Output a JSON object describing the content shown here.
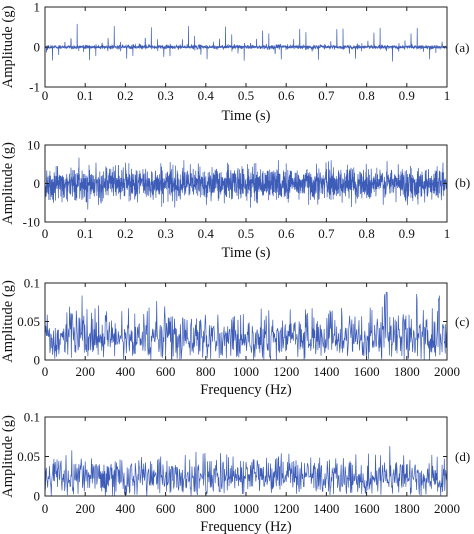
{
  "colors": {
    "signal": "#3d5cb8",
    "axis": "#222222"
  },
  "chart_data": [
    {
      "type": "line",
      "panel_label": "(a)",
      "xlabel": "Time (s)",
      "ylabel": "Amplitude (g)",
      "xlim": [
        0,
        1
      ],
      "ylim": [
        -1,
        1
      ],
      "xticks": [
        "0",
        "0.1",
        "0.2",
        "0.3",
        "0.4",
        "0.5",
        "0.6",
        "0.7",
        "0.8",
        "0.9",
        "1"
      ],
      "yticks": [
        "-1",
        "0",
        "1"
      ],
      "grid": false,
      "signal": {
        "kind": "periodic-impulses",
        "impulse_period_s": 0.01538,
        "impulse_count": 65,
        "peak_amplitude_g": 0.68,
        "baseline_noise_g": 0.05
      }
    },
    {
      "type": "line",
      "panel_label": "(b)",
      "xlabel": "Time (s)",
      "ylabel": "Amplitude (g)",
      "xlim": [
        0,
        1
      ],
      "ylim": [
        -10,
        10
      ],
      "xticks": [
        "0",
        "0.1",
        "0.2",
        "0.3",
        "0.4",
        "0.5",
        "0.6",
        "0.7",
        "0.8",
        "0.9",
        "1"
      ],
      "yticks": [
        "-10",
        "0",
        "10"
      ],
      "grid": false,
      "signal": {
        "kind": "noisy-impulses",
        "impulse_period_s": 0.01538,
        "noise_peak_g": 6.5
      }
    },
    {
      "type": "line",
      "panel_label": "(c)",
      "xlabel": "Frequency (Hz)",
      "ylabel": "Amplitude (g)",
      "xlim": [
        0,
        2000
      ],
      "ylim": [
        0,
        0.1
      ],
      "xticks": [
        "0",
        "200",
        "400",
        "600",
        "800",
        "1000",
        "1200",
        "1400",
        "1600",
        "1800",
        "2000"
      ],
      "yticks": [
        "0",
        "0.05",
        "0.1"
      ],
      "grid": false,
      "signal": {
        "kind": "spectrum",
        "mean_amplitude_g": 0.028,
        "max_amplitude_g": 0.088,
        "peak_frequencies_hz": [
          1690,
          1700,
          1850,
          1960
        ]
      }
    },
    {
      "type": "line",
      "panel_label": "(d)",
      "xlabel": "Frequency (Hz)",
      "ylabel": "Amplitude (g)",
      "xlim": [
        0,
        2000
      ],
      "ylim": [
        0,
        0.1
      ],
      "xticks": [
        "0",
        "200",
        "400",
        "600",
        "800",
        "1000",
        "1200",
        "1400",
        "1600",
        "1800",
        "2000"
      ],
      "yticks": [
        "0",
        "0.05",
        "0.1"
      ],
      "grid": false,
      "signal": {
        "kind": "spectrum",
        "mean_amplitude_g": 0.022,
        "max_amplitude_g": 0.072,
        "peak_frequencies_hz": []
      }
    }
  ]
}
